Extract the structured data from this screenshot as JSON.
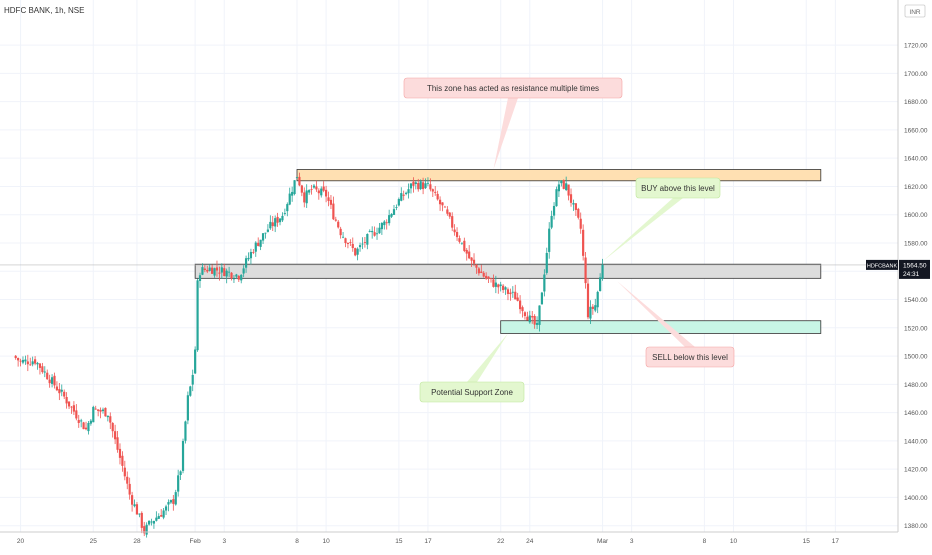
{
  "header": {
    "symbol_title": "HDFC BANK, 1h, NSE",
    "currency": "INR"
  },
  "colors": {
    "up": "#26a69a",
    "down": "#ef5350",
    "grid": "#f0f3fa",
    "axis_text": "#555555",
    "resistance_fill": "#ffe0b2",
    "support_fill": "#c8f5e6",
    "current_fill": "#dddddd",
    "price_line": "#bbbbbb",
    "tag_bg": "#131722"
  },
  "chart_data": {
    "type": "candlestick",
    "symbol": "HDFC BANK",
    "interval": "1h",
    "exchange": "NSE",
    "ylim": [
      1372,
      1742
    ],
    "y_ticks": [
      1380,
      1400,
      1420,
      1440,
      1460,
      1480,
      1500,
      1520,
      1540,
      1560,
      1580,
      1600,
      1620,
      1640,
      1660,
      1680,
      1700,
      1720
    ],
    "x_ticks": [
      {
        "label": "20",
        "day": 1
      },
      {
        "label": "25",
        "day": 6
      },
      {
        "label": "28",
        "day": 9
      },
      {
        "label": "Feb",
        "day": 13
      },
      {
        "label": "3",
        "day": 15
      },
      {
        "label": "8",
        "day": 20
      },
      {
        "label": "10",
        "day": 22
      },
      {
        "label": "15",
        "day": 27
      },
      {
        "label": "17",
        "day": 29
      },
      {
        "label": "22",
        "day": 34
      },
      {
        "label": "24",
        "day": 36
      },
      {
        "label": "Mar",
        "day": 41
      },
      {
        "label": "3",
        "day": 43
      },
      {
        "label": "8",
        "day": 48
      },
      {
        "label": "10",
        "day": 50
      },
      {
        "label": "15",
        "day": 55
      },
      {
        "label": "17",
        "day": 57
      }
    ],
    "bars_per_day": 6,
    "close_path": [
      {
        "day": 0.5,
        "price": 1500
      },
      {
        "day": 1.0,
        "price": 1496
      },
      {
        "day": 2.0,
        "price": 1497
      },
      {
        "day": 3.0,
        "price": 1484
      },
      {
        "day": 4.0,
        "price": 1471
      },
      {
        "day": 5.0,
        "price": 1456
      },
      {
        "day": 5.5,
        "price": 1448
      },
      {
        "day": 6.0,
        "price": 1462
      },
      {
        "day": 7.0,
        "price": 1460
      },
      {
        "day": 7.5,
        "price": 1440
      },
      {
        "day": 8.0,
        "price": 1422
      },
      {
        "day": 8.5,
        "price": 1402
      },
      {
        "day": 9.0,
        "price": 1390
      },
      {
        "day": 9.5,
        "price": 1376
      },
      {
        "day": 10.0,
        "price": 1383
      },
      {
        "day": 11.0,
        "price": 1392
      },
      {
        "day": 11.5,
        "price": 1398
      },
      {
        "day": 12.0,
        "price": 1420
      },
      {
        "day": 12.5,
        "price": 1470
      },
      {
        "day": 12.8,
        "price": 1484
      },
      {
        "day": 13.0,
        "price": 1505
      },
      {
        "day": 13.2,
        "price": 1560
      },
      {
        "day": 14.0,
        "price": 1562
      },
      {
        "day": 15.0,
        "price": 1560
      },
      {
        "day": 16.0,
        "price": 1557
      },
      {
        "day": 17.0,
        "price": 1576
      },
      {
        "day": 18.0,
        "price": 1590
      },
      {
        "day": 19.0,
        "price": 1600
      },
      {
        "day": 20.0,
        "price": 1628
      },
      {
        "day": 20.5,
        "price": 1612
      },
      {
        "day": 21.0,
        "price": 1618
      },
      {
        "day": 22.0,
        "price": 1614
      },
      {
        "day": 22.5,
        "price": 1600
      },
      {
        "day": 23.0,
        "price": 1588
      },
      {
        "day": 24.0,
        "price": 1573
      },
      {
        "day": 25.0,
        "price": 1585
      },
      {
        "day": 26.0,
        "price": 1594
      },
      {
        "day": 27.0,
        "price": 1610
      },
      {
        "day": 28.0,
        "price": 1622
      },
      {
        "day": 29.0,
        "price": 1620
      },
      {
        "day": 30.0,
        "price": 1605
      },
      {
        "day": 31.0,
        "price": 1586
      },
      {
        "day": 32.0,
        "price": 1566
      },
      {
        "day": 33.0,
        "price": 1555
      },
      {
        "day": 34.0,
        "price": 1548
      },
      {
        "day": 35.0,
        "price": 1542
      },
      {
        "day": 36.0,
        "price": 1526
      },
      {
        "day": 36.5,
        "price": 1520
      },
      {
        "day": 37.0,
        "price": 1560
      },
      {
        "day": 37.5,
        "price": 1602
      },
      {
        "day": 38.0,
        "price": 1622
      },
      {
        "day": 38.5,
        "price": 1620
      },
      {
        "day": 39.0,
        "price": 1605
      },
      {
        "day": 39.5,
        "price": 1590
      },
      {
        "day": 40.0,
        "price": 1530
      },
      {
        "day": 40.5,
        "price": 1536
      },
      {
        "day": 41.0,
        "price": 1564.5
      }
    ],
    "zones": [
      {
        "name": "resistance",
        "from_day": 20.0,
        "to_day": 56.0,
        "low": 1624,
        "high": 1632
      },
      {
        "name": "current",
        "from_day": 13.0,
        "to_day": 56.0,
        "low": 1555,
        "high": 1565
      },
      {
        "name": "support",
        "from_day": 34.0,
        "to_day": 56.0,
        "low": 1516,
        "high": 1525
      }
    ],
    "last_price": "1564.50",
    "last_symbol": "HDFCBANK",
    "countdown": "24:31",
    "annotations": [
      {
        "text": "This zone has acted as resistance multiple times",
        "style": "red",
        "pointer_day": 33.5,
        "pointer_price": 1632
      },
      {
        "text": "BUY above this level",
        "style": "green",
        "pointer_day": 41.0,
        "pointer_price": 1567
      },
      {
        "text": "SELL below this level",
        "style": "red",
        "pointer_day": 42.0,
        "pointer_price": 1553
      },
      {
        "text": "Potential Support Zone",
        "style": "green",
        "pointer_day": 34.5,
        "pointer_price": 1516
      }
    ]
  }
}
